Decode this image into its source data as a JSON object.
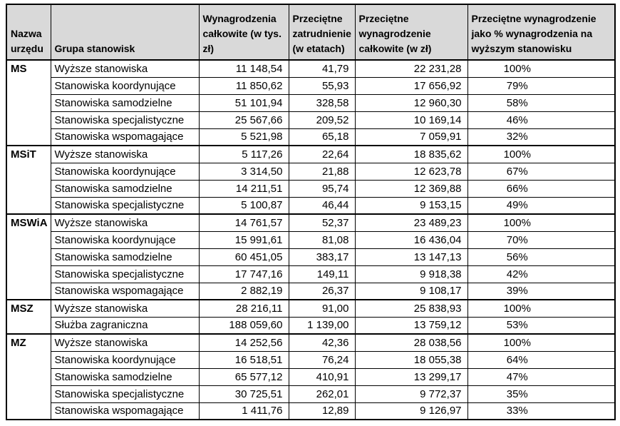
{
  "colors": {
    "header_background": "#d9d9d9",
    "border": "#000000",
    "text": "#000000",
    "page_background": "#ffffff"
  },
  "table": {
    "headers": [
      "Nazwa urzędu",
      "Grupa stanowisk",
      "Wynagrodzenia całkowite (w tys. zł)",
      "Przeciętne zatrudnienie (w etatach)",
      "Przeciętne wynagrodzenie całkowite (w zł)",
      "Przeciętne wynagrodzenie jako % wynagrodzenia na wyższym stanowisku"
    ],
    "groups": [
      {
        "office": "MS",
        "rows": [
          [
            "Wyższe stanowiska",
            "11 148,54",
            "41,79",
            "22 231,28",
            "100%"
          ],
          [
            "Stanowiska koordynujące",
            "11 850,62",
            "55,93",
            "17 656,92",
            "79%"
          ],
          [
            "Stanowiska samodzielne",
            "51 101,94",
            "328,58",
            "12 960,30",
            "58%"
          ],
          [
            "Stanowiska specjalistyczne",
            "25 567,66",
            "209,52",
            "10 169,14",
            "46%"
          ],
          [
            "Stanowiska wspomagające",
            "5 521,98",
            "65,18",
            "7 059,91",
            "32%"
          ]
        ]
      },
      {
        "office": "MSiT",
        "rows": [
          [
            "Wyższe stanowiska",
            "5 117,26",
            "22,64",
            "18 835,62",
            "100%"
          ],
          [
            "Stanowiska koordynujące",
            "3 314,50",
            "21,88",
            "12 623,78",
            "67%"
          ],
          [
            "Stanowiska samodzielne",
            "14 211,51",
            "95,74",
            "12 369,88",
            "66%"
          ],
          [
            "Stanowiska specjalistyczne",
            "5 100,87",
            "46,44",
            "9 153,15",
            "49%"
          ]
        ]
      },
      {
        "office": "MSWiA",
        "rows": [
          [
            "Wyższe stanowiska",
            "14 761,57",
            "52,37",
            "23 489,23",
            "100%"
          ],
          [
            "Stanowiska koordynujące",
            "15 991,61",
            "81,08",
            "16 436,04",
            "70%"
          ],
          [
            "Stanowiska samodzielne",
            "60 451,05",
            "383,17",
            "13 147,13",
            "56%"
          ],
          [
            "Stanowiska specjalistyczne",
            "17 747,16",
            "149,11",
            "9 918,38",
            "42%"
          ],
          [
            "Stanowiska wspomagające",
            "2 882,19",
            "26,37",
            "9 108,17",
            "39%"
          ]
        ]
      },
      {
        "office": "MSZ",
        "rows": [
          [
            "Wyższe stanowiska",
            "28 216,11",
            "91,00",
            "25 838,93",
            "100%"
          ],
          [
            "Służba zagraniczna",
            "188 059,60",
            "1 139,00",
            "13 759,12",
            "53%"
          ]
        ]
      },
      {
        "office": "MZ",
        "rows": [
          [
            "Wyższe stanowiska",
            "14 252,56",
            "42,36",
            "28 038,56",
            "100%"
          ],
          [
            "Stanowiska koordynujące",
            "16 518,51",
            "76,24",
            "18 055,38",
            "64%"
          ],
          [
            "Stanowiska samodzielne",
            "65 577,12",
            "410,91",
            "13 299,17",
            "47%"
          ],
          [
            "Stanowiska specjalistyczne",
            "30 725,51",
            "262,01",
            "9 772,37",
            "35%"
          ],
          [
            "Stanowiska wspomagające",
            "1 411,76",
            "12,89",
            "9 126,97",
            "33%"
          ]
        ]
      }
    ]
  }
}
